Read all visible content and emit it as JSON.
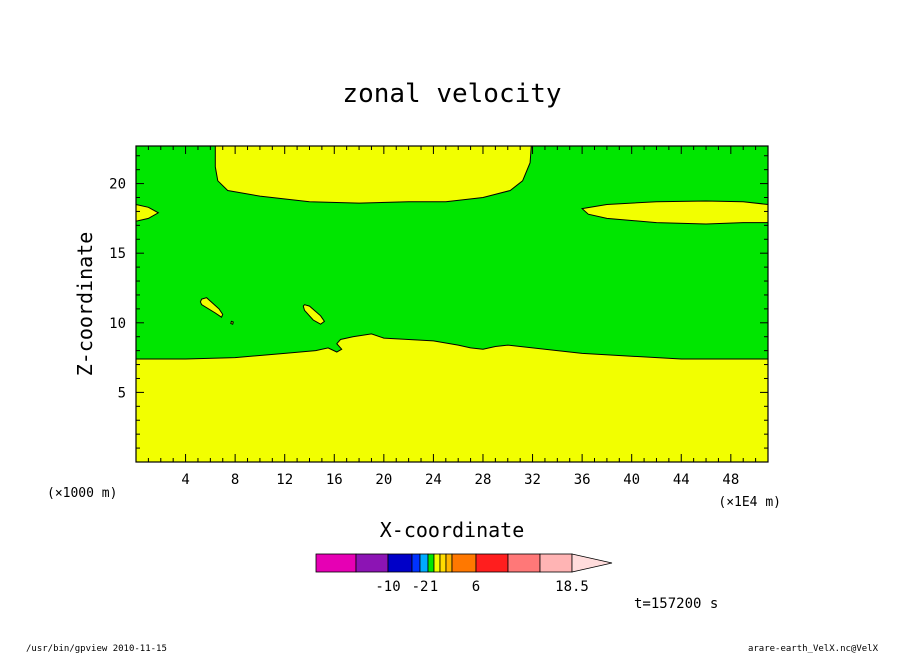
{
  "chart_data": {
    "type": "contour",
    "title": "zonal velocity",
    "xlabel": "X-coordinate",
    "ylabel": "Z-coordinate",
    "x_unit_left": "(×1000 m)",
    "x_unit_right": "(×1E4 m)",
    "xlim": [
      0,
      51
    ],
    "ylim": [
      0,
      22.7
    ],
    "x_ticks": [
      4,
      8,
      12,
      16,
      20,
      24,
      28,
      32,
      36,
      40,
      44,
      48
    ],
    "y_ticks": [
      5,
      10,
      15,
      20
    ],
    "fill_colors": {
      "background": "#00e600",
      "positive": "#f2ff00"
    },
    "contour_regions": [
      {
        "name": "lower-layer",
        "level": "positive",
        "boundary": [
          [
            0,
            0
          ],
          [
            51,
            0
          ],
          [
            51,
            7.4
          ],
          [
            44,
            7.4
          ],
          [
            40,
            7.6
          ],
          [
            36,
            7.8
          ],
          [
            33,
            8.1
          ],
          [
            30,
            8.4
          ],
          [
            29,
            8.3
          ],
          [
            28,
            8.1
          ],
          [
            27,
            8.2
          ],
          [
            26,
            8.4
          ],
          [
            24,
            8.7
          ],
          [
            22,
            8.8
          ],
          [
            20,
            8.9
          ],
          [
            19,
            9.2
          ],
          [
            17.5,
            9.0
          ],
          [
            16.5,
            8.8
          ],
          [
            16.2,
            8.5
          ],
          [
            16.6,
            8.1
          ],
          [
            16.2,
            7.9
          ],
          [
            15.5,
            8.2
          ],
          [
            14.5,
            8.0
          ],
          [
            12,
            7.8
          ],
          [
            8,
            7.5
          ],
          [
            4,
            7.4
          ],
          [
            0,
            7.4
          ]
        ]
      },
      {
        "name": "upper-band",
        "level": "positive",
        "boundary": [
          [
            6.4,
            22.7
          ],
          [
            31.9,
            22.7
          ],
          [
            31.8,
            21.5
          ],
          [
            31.2,
            20.2
          ],
          [
            30.2,
            19.5
          ],
          [
            28,
            19.0
          ],
          [
            25,
            18.7
          ],
          [
            22,
            18.7
          ],
          [
            18,
            18.6
          ],
          [
            14,
            18.7
          ],
          [
            10,
            19.1
          ],
          [
            7.4,
            19.5
          ],
          [
            6.6,
            20.2
          ],
          [
            6.4,
            21.2
          ]
        ]
      },
      {
        "name": "right-lens",
        "level": "positive",
        "boundary": [
          [
            36,
            18.2
          ],
          [
            38,
            18.5
          ],
          [
            42,
            18.7
          ],
          [
            46,
            18.75
          ],
          [
            49,
            18.7
          ],
          [
            51,
            18.5
          ],
          [
            51,
            17.2
          ],
          [
            49,
            17.2
          ],
          [
            46,
            17.1
          ],
          [
            42,
            17.2
          ],
          [
            38,
            17.5
          ],
          [
            36.5,
            17.8
          ]
        ]
      },
      {
        "name": "left-edge-patch",
        "level": "positive",
        "boundary": [
          [
            0,
            18.5
          ],
          [
            1,
            18.3
          ],
          [
            1.8,
            17.9
          ],
          [
            1,
            17.5
          ],
          [
            0,
            17.3
          ]
        ]
      },
      {
        "name": "blob-1",
        "level": "positive",
        "boundary": [
          [
            5.3,
            11.7
          ],
          [
            5.7,
            11.8
          ],
          [
            6.7,
            11.0
          ],
          [
            7,
            10.6
          ],
          [
            6.9,
            10.4
          ],
          [
            6.4,
            10.7
          ],
          [
            5.3,
            11.3
          ],
          [
            5.2,
            11.5
          ]
        ]
      },
      {
        "name": "blob-2",
        "level": "positive",
        "boundary": [
          [
            13.6,
            11.3
          ],
          [
            14,
            11.2
          ],
          [
            14.9,
            10.5
          ],
          [
            15.2,
            10.1
          ],
          [
            14.9,
            9.9
          ],
          [
            14.3,
            10.2
          ],
          [
            13.6,
            10.9
          ],
          [
            13.5,
            11.2
          ]
        ]
      },
      {
        "name": "blob-3",
        "level": "positive",
        "boundary": [
          [
            7.7,
            10.1
          ],
          [
            7.85,
            10.05
          ],
          [
            7.8,
            9.9
          ],
          [
            7.65,
            9.95
          ]
        ]
      }
    ],
    "colorbar": {
      "colors": [
        "#e600b4",
        "#8c14b4",
        "#0000c8",
        "#0032ff",
        "#00aaff",
        "#00e600",
        "#f2ff00",
        "#ffdc00",
        "#ffb400",
        "#ff7800",
        "#ff1e1e",
        "#ff7878",
        "#ffb4b4"
      ],
      "widths": [
        40,
        32,
        24,
        8,
        8,
        6,
        6,
        6,
        6,
        24,
        32,
        32,
        32
      ],
      "labels": [
        "-10",
        "-2",
        "1",
        "6",
        "18.5"
      ]
    },
    "time_label": "t=157200 s"
  },
  "footer": {
    "left": "/usr/bin/gpview   2010-11-15",
    "right": "arare-earth_VelX.nc@VelX"
  }
}
